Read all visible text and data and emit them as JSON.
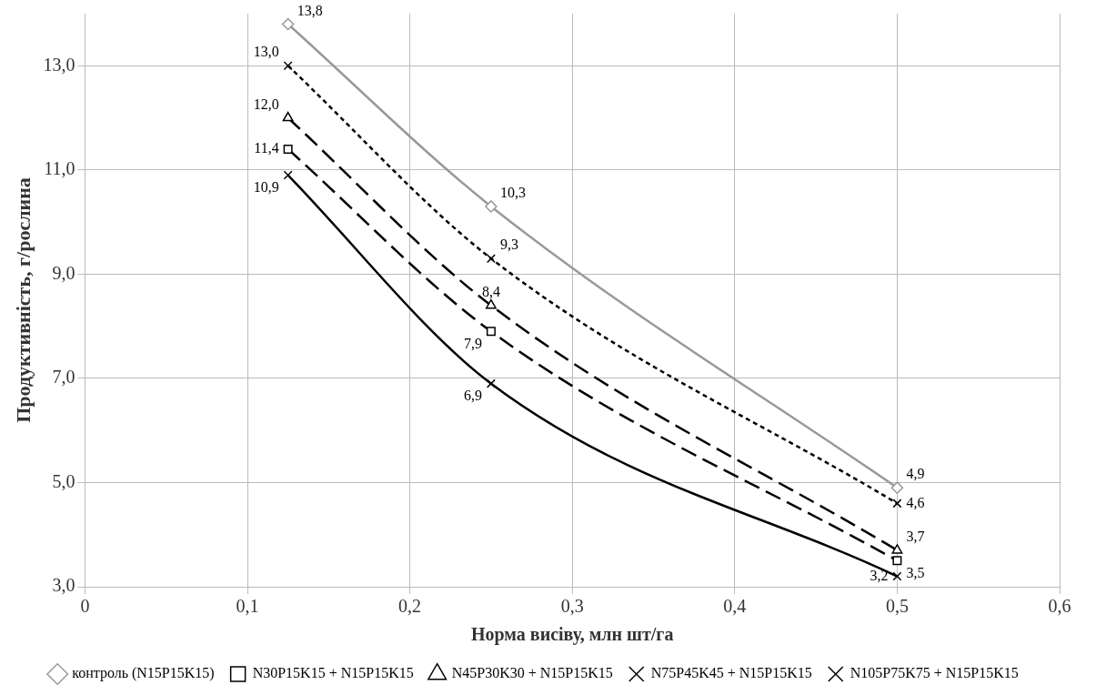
{
  "chart_data": {
    "type": "line",
    "xlabel": "Норма висіву, млн шт/га",
    "ylabel": "Продуктивність, г/рослина",
    "x": [
      0.125,
      0.25,
      0.5
    ],
    "xlim": [
      0,
      0.6
    ],
    "xticks": [
      0,
      {
        "value": 0.1,
        "label": "0,1"
      },
      {
        "value": 0.2,
        "label": "0,2"
      },
      {
        "value": 0.3,
        "label": "0,3"
      },
      {
        "value": 0.4,
        "label": "0,4"
      },
      {
        "value": 0.5,
        "label": "0,5"
      },
      {
        "value": 0.6,
        "label": "0,6"
      }
    ],
    "ylim": [
      3,
      14
    ],
    "yticks": [
      {
        "value": 3,
        "label": "3,0"
      },
      {
        "value": 5,
        "label": "5,0"
      },
      {
        "value": 7,
        "label": "7,0"
      },
      {
        "value": 9,
        "label": "9,0"
      },
      {
        "value": 11,
        "label": "11,0"
      },
      {
        "value": 13,
        "label": "13,0"
      }
    ],
    "grid": true,
    "legend": "bottom",
    "series": [
      {
        "name": "контроль (N15P15K15)",
        "color": "#999999",
        "marker": "diamond",
        "line_style": "solid",
        "values": [
          13.8,
          10.3,
          4.9
        ],
        "value_labels": [
          "13,8",
          "10,3",
          "4,9"
        ]
      },
      {
        "name": "N30P15K15 + N15P15K15",
        "color": "#000000",
        "marker": "square",
        "line_style": "dashed",
        "values": [
          11.4,
          7.9,
          3.5
        ],
        "value_labels": [
          "11,4",
          "7,9",
          "3,5"
        ]
      },
      {
        "name": "N45P30K30 + N15P15K15",
        "color": "#000000",
        "marker": "triangle",
        "line_style": "dashed",
        "values": [
          12.0,
          8.4,
          3.7
        ],
        "value_labels": [
          "12,0",
          "8,4",
          "3,7"
        ]
      },
      {
        "name": "N75P45K45 + N15P15K15",
        "color": "#000000",
        "marker": "cross",
        "line_style": "dotted",
        "values": [
          13.0,
          9.3,
          4.6
        ],
        "value_labels": [
          "13,0",
          "9,3",
          "4,6"
        ]
      },
      {
        "name": "N105P75K75 + N15P15K15",
        "color": "#000000",
        "marker": "cross",
        "line_style": "solid",
        "values": [
          10.9,
          6.9,
          3.2
        ],
        "value_labels": [
          "10,9",
          "6,9",
          "3,2"
        ]
      }
    ]
  }
}
